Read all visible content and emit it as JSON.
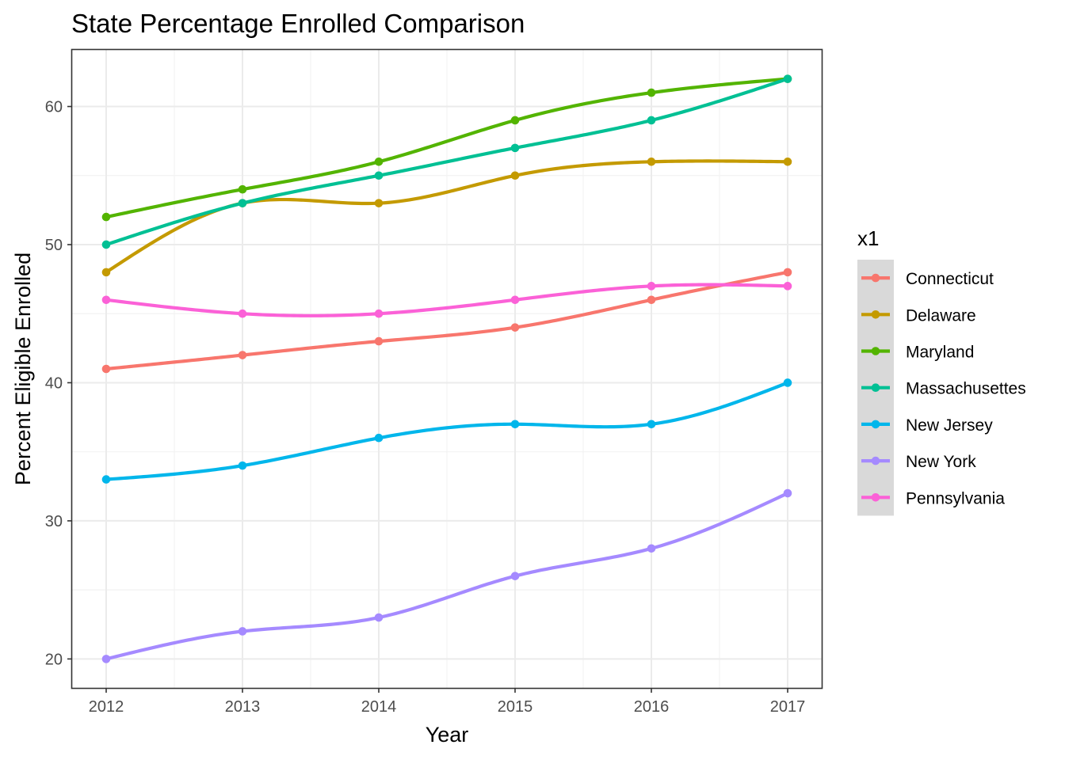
{
  "chart_data": {
    "type": "line",
    "title": "State Percentage Enrolled Comparison",
    "xlabel": "Year",
    "ylabel": "Percent Eligible Enrolled",
    "x": [
      2012,
      2013,
      2014,
      2015,
      2016,
      2017
    ],
    "x_tick_labels": [
      "2012",
      "2013",
      "2014",
      "2015",
      "2016",
      "2017"
    ],
    "y_ticks": [
      20,
      30,
      40,
      50,
      60
    ],
    "y_tick_labels": [
      "20",
      "30",
      "40",
      "50",
      "60"
    ],
    "xlim": [
      2011.75,
      2017.25
    ],
    "ylim": [
      17.9,
      64.1
    ],
    "grid": true,
    "smoothed": true,
    "legend_title": "x1",
    "legend_position": "right",
    "series": [
      {
        "name": "Connecticut",
        "color": "#F8766D",
        "values": [
          41,
          42,
          43,
          44,
          46,
          48
        ]
      },
      {
        "name": "Delaware",
        "color": "#C49A00",
        "values": [
          48,
          53,
          53,
          55,
          56,
          56
        ]
      },
      {
        "name": "Maryland",
        "color": "#53B400",
        "values": [
          52,
          54,
          56,
          59,
          61,
          62
        ]
      },
      {
        "name": "Massachusettes",
        "color": "#00C094",
        "values": [
          50,
          53,
          55,
          57,
          59,
          62
        ]
      },
      {
        "name": "New Jersey",
        "color": "#00B6EB",
        "values": [
          33,
          34,
          36,
          37,
          37,
          40
        ]
      },
      {
        "name": "New York",
        "color": "#A58AFF",
        "values": [
          20,
          22,
          23,
          26,
          28,
          32
        ]
      },
      {
        "name": "Pennsylvania",
        "color": "#FB61D7",
        "values": [
          46,
          45,
          45,
          46,
          47,
          47
        ]
      }
    ]
  }
}
